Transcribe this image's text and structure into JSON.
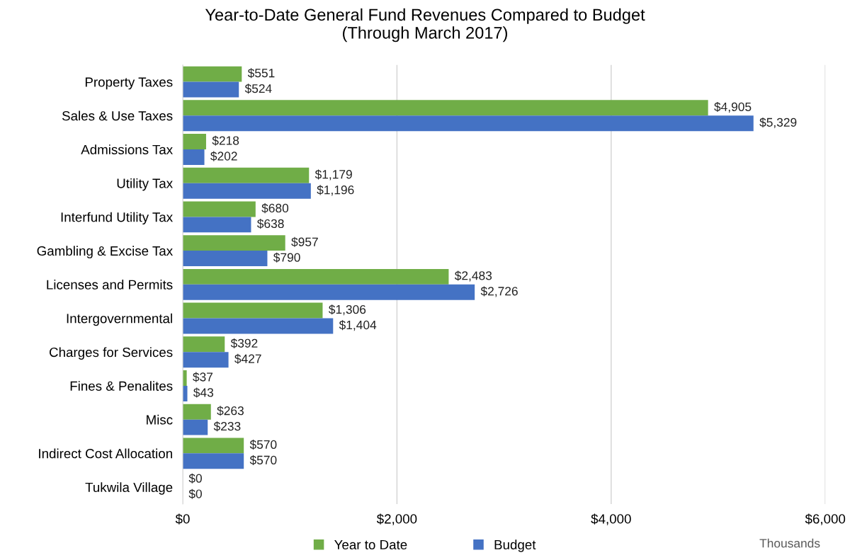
{
  "chart_data": {
    "type": "bar",
    "orientation": "horizontal",
    "title": "Year-to-Date General Fund Revenues Compared to Budget\n(Through March 2017)",
    "categories": [
      "Property Taxes",
      "Sales & Use Taxes",
      "Admissions Tax",
      "Utility Tax",
      "Interfund Utility Tax",
      "Gambling & Excise Tax",
      "Licenses and Permits",
      "Intergovernmental",
      "Charges for Services",
      "Fines & Penalites",
      "Misc",
      "Indirect Cost Allocation",
      "Tukwila Village"
    ],
    "series": [
      {
        "name": "Year to Date",
        "color": "#70ad47",
        "values": [
          551,
          4905,
          218,
          1179,
          680,
          957,
          2483,
          1306,
          392,
          37,
          263,
          570,
          0
        ],
        "value_labels": [
          "$551",
          "$4,905",
          "$218",
          "$1,179",
          "$680",
          "$957",
          "$2,483",
          "$1,306",
          "$392",
          "$37",
          "$263",
          "$570",
          "$0"
        ]
      },
      {
        "name": "Budget",
        "color": "#4472c4",
        "values": [
          524,
          5329,
          202,
          1196,
          638,
          790,
          2726,
          1404,
          427,
          43,
          233,
          570,
          0
        ],
        "value_labels": [
          "$524",
          "$5,329",
          "$202",
          "$1,196",
          "$638",
          "$790",
          "$2,726",
          "$1,404",
          "$427",
          "$43",
          "$233",
          "$570",
          "$0"
        ]
      }
    ],
    "xlim": [
      0,
      6000
    ],
    "xticks": [
      {
        "value": 0,
        "label": "$0"
      },
      {
        "value": 2000,
        "label": "$2,000"
      },
      {
        "value": 4000,
        "label": "$4,000"
      },
      {
        "value": 6000,
        "label": "$6,000"
      }
    ],
    "grid": "x",
    "legend": "bottom",
    "annotations": [
      "Thousands"
    ]
  }
}
